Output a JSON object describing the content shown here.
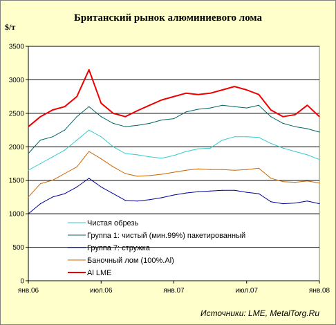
{
  "chart_data": {
    "type": "line",
    "title": "Британский рынок алюминиевого лома",
    "ylabel": "$/т",
    "source": "Источники: LME, MetalTorg.Ru",
    "ylim": [
      0,
      3500
    ],
    "yticks": [
      0,
      500,
      1000,
      1500,
      2000,
      2500,
      3000,
      3500
    ],
    "xticks": [
      {
        "label": "янв.06",
        "month": 0
      },
      {
        "label": "июл.06",
        "month": 6
      },
      {
        "label": "янв.07",
        "month": 12
      },
      {
        "label": "июл.07",
        "month": 18
      },
      {
        "label": "янв.08",
        "month": 24
      }
    ],
    "xlim": [
      0,
      24
    ],
    "grid": "horizontal",
    "legend_position": "lower-left, inside plot",
    "x_months": [
      0,
      1,
      2,
      3,
      4,
      5,
      6,
      7,
      8,
      9,
      10,
      11,
      12,
      13,
      14,
      15,
      16,
      17,
      18,
      19,
      20,
      21,
      22,
      23,
      24
    ],
    "series": [
      {
        "name": "Чистая обрезь",
        "color": "#33cccc",
        "width": 1,
        "values": [
          1650,
          1750,
          1850,
          1950,
          2100,
          2250,
          2150,
          2000,
          1900,
          1880,
          1850,
          1830,
          1870,
          1930,
          1970,
          1980,
          2100,
          2150,
          2150,
          2140,
          2050,
          1980,
          1930,
          1880,
          1810
        ]
      },
      {
        "name": "Группа 1: чистый (мин.99%) пакетированный",
        "color": "#006666",
        "width": 1,
        "values": [
          1900,
          2100,
          2150,
          2250,
          2450,
          2600,
          2450,
          2350,
          2300,
          2320,
          2350,
          2400,
          2420,
          2520,
          2560,
          2580,
          2620,
          2600,
          2580,
          2620,
          2450,
          2350,
          2300,
          2270,
          2220
        ]
      },
      {
        "name": "Группа 7: стружка",
        "color": "#000099",
        "width": 1,
        "values": [
          1000,
          1150,
          1250,
          1300,
          1400,
          1530,
          1400,
          1300,
          1200,
          1190,
          1210,
          1240,
          1280,
          1310,
          1330,
          1340,
          1350,
          1350,
          1320,
          1300,
          1180,
          1150,
          1160,
          1190,
          1150
        ]
      },
      {
        "name": "Баночный лом (100%.Al)",
        "color": "#cc6600",
        "width": 1,
        "values": [
          1250,
          1450,
          1500,
          1600,
          1700,
          1930,
          1820,
          1700,
          1600,
          1560,
          1570,
          1590,
          1620,
          1650,
          1670,
          1660,
          1660,
          1650,
          1660,
          1680,
          1530,
          1480,
          1470,
          1490,
          1460
        ]
      },
      {
        "name": "Al LME",
        "color": "#ee0000",
        "width": 2,
        "values": [
          2300,
          2450,
          2550,
          2600,
          2750,
          3150,
          2650,
          2500,
          2450,
          2540,
          2620,
          2700,
          2750,
          2800,
          2780,
          2800,
          2850,
          2900,
          2850,
          2780,
          2550,
          2450,
          2480,
          2620,
          2450
        ]
      }
    ]
  }
}
